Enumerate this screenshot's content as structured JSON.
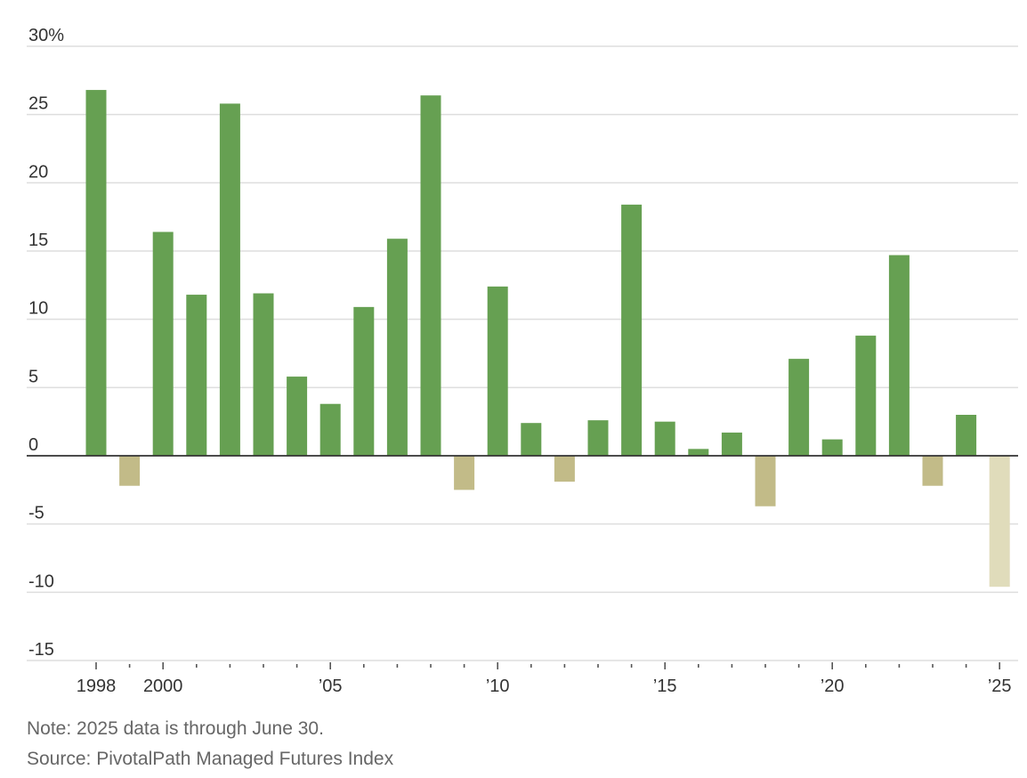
{
  "chart_data": {
    "type": "bar",
    "x": [
      1998,
      1999,
      2000,
      2001,
      2002,
      2003,
      2004,
      2005,
      2006,
      2007,
      2008,
      2009,
      2010,
      2011,
      2012,
      2013,
      2014,
      2015,
      2016,
      2017,
      2018,
      2019,
      2020,
      2021,
      2022,
      2023,
      2024,
      2025
    ],
    "values": [
      26.8,
      -2.2,
      16.4,
      11.8,
      25.8,
      11.9,
      5.8,
      3.8,
      10.9,
      15.9,
      26.4,
      -2.5,
      12.4,
      2.4,
      -1.9,
      2.6,
      18.4,
      2.5,
      0.5,
      1.7,
      -3.7,
      7.1,
      1.2,
      8.8,
      14.7,
      -2.2,
      3.0,
      -9.6
    ],
    "ylim": [
      -15,
      30
    ],
    "yticks": [
      30,
      25,
      20,
      15,
      10,
      5,
      0,
      -5,
      -10,
      -15
    ],
    "ytick_labels": [
      "30%",
      "25",
      "20",
      "15",
      "10",
      "5",
      "0",
      "-5",
      "-10",
      "-15"
    ],
    "xtick_labels": [
      {
        "year": 1998,
        "label": "1998"
      },
      {
        "year": 2000,
        "label": "2000"
      },
      {
        "year": 2005,
        "label": "’05"
      },
      {
        "year": 2010,
        "label": "’10"
      },
      {
        "year": 2015,
        "label": "’15"
      },
      {
        "year": 2020,
        "label": "’20"
      },
      {
        "year": 2025,
        "label": "’25"
      }
    ],
    "colors": {
      "positive": "#66a052",
      "negative": "#c2bb88",
      "partial_year": "#e0dcbb"
    },
    "partial_year": 2025,
    "grid": true
  },
  "note": "Note: 2025 data is through June 30.",
  "source": "Source: PivotalPath Managed Futures Index"
}
